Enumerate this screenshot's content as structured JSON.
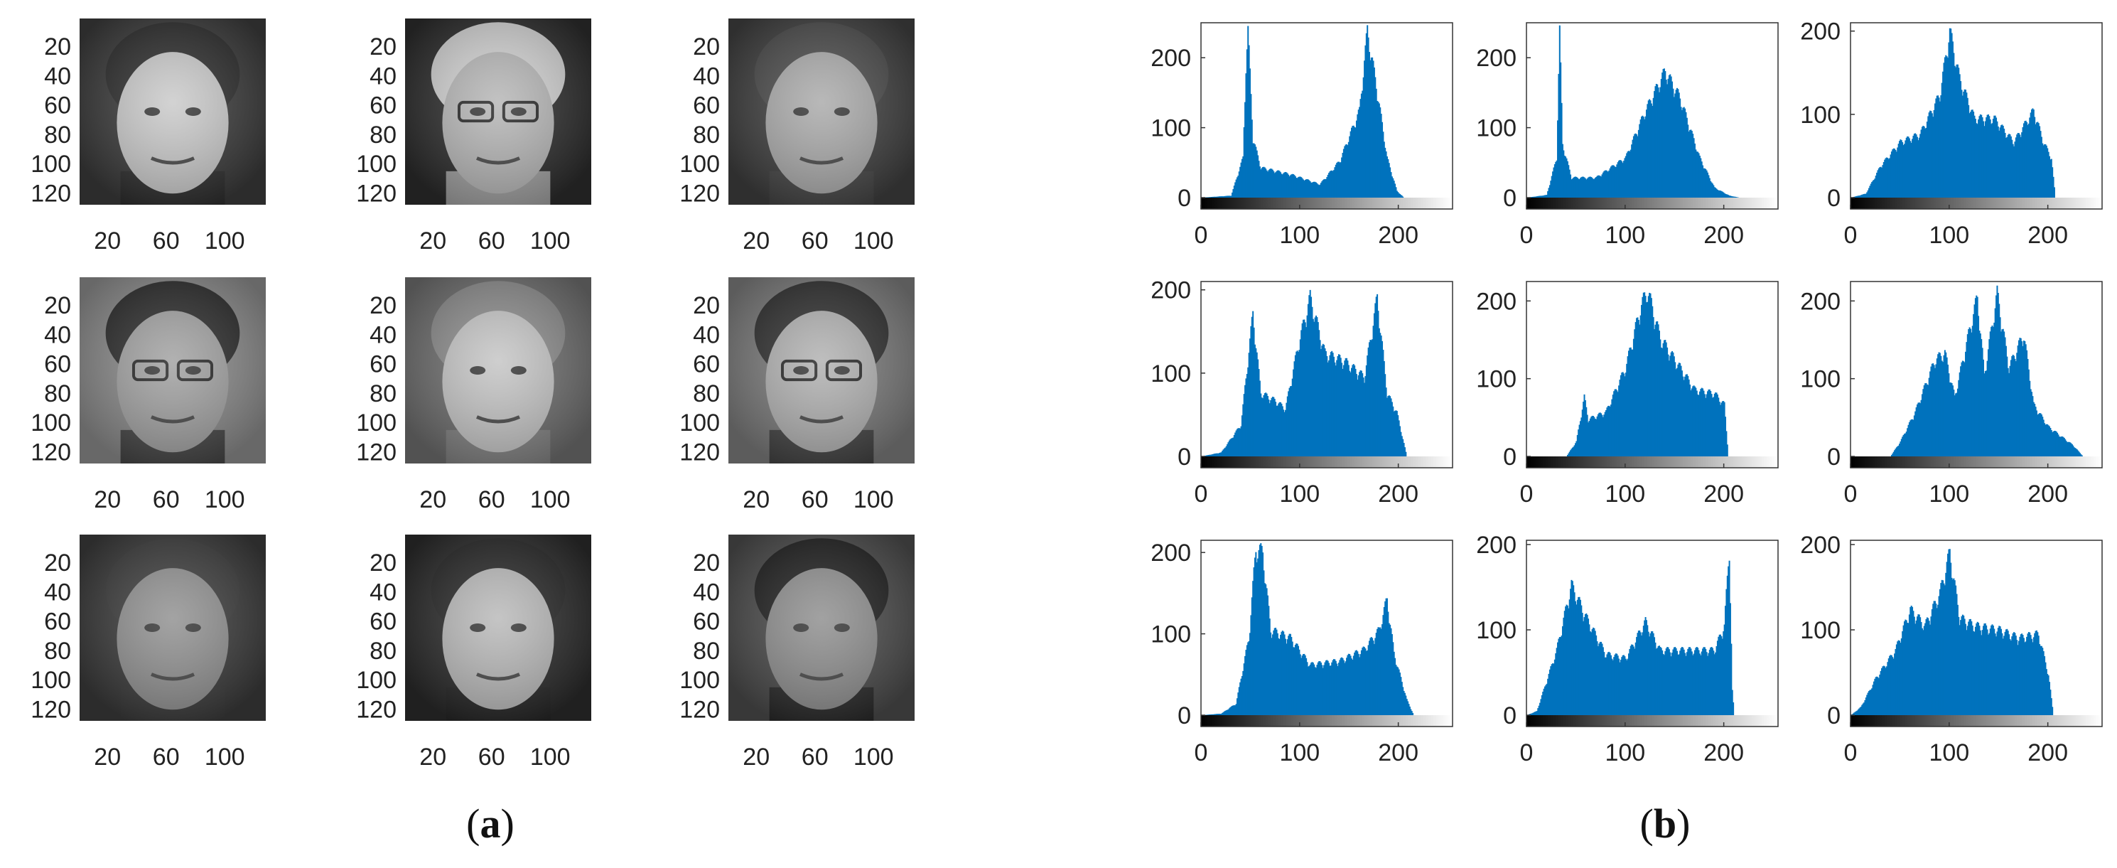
{
  "panels": {
    "a": {
      "label_open": "(",
      "label_letter": "a",
      "label_close": ")"
    },
    "b": {
      "label_open": "(",
      "label_letter": "b",
      "label_close": ")"
    }
  },
  "face_images": {
    "x_ticks": [
      20,
      60,
      100
    ],
    "y_ticks": [
      20,
      40,
      60,
      80,
      100,
      120
    ],
    "x_range": [
      1,
      128
    ],
    "y_range": [
      1,
      128
    ],
    "tiles": [
      {
        "background_tone": "#3a3a3a",
        "skin_tone": "#c9c9c9",
        "hair_tone": "#2b2b2b",
        "glasses": false
      },
      {
        "background_tone": "#2c2c2c",
        "skin_tone": "#b5b5b5",
        "hair_tone": "#d2d2d2",
        "glasses": true
      },
      {
        "background_tone": "#3f3f3f",
        "skin_tone": "#a9a9a9",
        "hair_tone": "#4a4a4a",
        "glasses": false
      },
      {
        "background_tone": "#8a8a8a",
        "skin_tone": "#a0a0a0",
        "hair_tone": "#2a2a2a",
        "glasses": true
      },
      {
        "background_tone": "#6e6e6e",
        "skin_tone": "#c4c4c4",
        "hair_tone": "#8c8c8c",
        "glasses": false
      },
      {
        "background_tone": "#7a7a7a",
        "skin_tone": "#b0b0b0",
        "hair_tone": "#2e2e2e",
        "glasses": true
      },
      {
        "background_tone": "#3a3a3a",
        "skin_tone": "#8f8f8f",
        "hair_tone": "#3c3c3c",
        "glasses": false
      },
      {
        "background_tone": "#2a2a2a",
        "skin_tone": "#b8b8b8",
        "hair_tone": "#262626",
        "glasses": false
      },
      {
        "background_tone": "#4b4b4b",
        "skin_tone": "#8d8d8d",
        "hair_tone": "#1e1e1e",
        "glasses": false
      }
    ]
  },
  "chart_data": {
    "type": "bar",
    "bar_color": "#0072BD",
    "x_ticks": [
      0,
      100,
      200
    ],
    "y_ticks": [
      0,
      100,
      200
    ],
    "xlim": [
      0,
      255
    ],
    "grid": false,
    "colorbar": "grayscale gradient 0 to 255 below each x-axis",
    "histograms": [
      {
        "ylim": [
          0,
          250
        ],
        "peaks": [
          [
            0,
            0
          ],
          [
            30,
            3
          ],
          [
            42,
            60
          ],
          [
            45,
            200
          ],
          [
            47,
            250
          ],
          [
            52,
            90
          ],
          [
            60,
            45
          ],
          [
            90,
            35
          ],
          [
            120,
            20
          ],
          [
            140,
            55
          ],
          [
            160,
            130
          ],
          [
            168,
            250
          ],
          [
            178,
            160
          ],
          [
            188,
            60
          ],
          [
            198,
            10
          ],
          [
            205,
            0
          ],
          [
            255,
            0
          ]
        ]
      },
      {
        "ylim": [
          0,
          250
        ],
        "peaks": [
          [
            0,
            0
          ],
          [
            20,
            4
          ],
          [
            30,
            60
          ],
          [
            33,
            250
          ],
          [
            36,
            80
          ],
          [
            45,
            30
          ],
          [
            70,
            30
          ],
          [
            100,
            60
          ],
          [
            120,
            130
          ],
          [
            140,
            190
          ],
          [
            155,
            150
          ],
          [
            175,
            60
          ],
          [
            190,
            15
          ],
          [
            205,
            3
          ],
          [
            215,
            0
          ],
          [
            255,
            0
          ]
        ]
      },
      {
        "ylim": [
          0,
          210
        ],
        "peaks": [
          [
            0,
            0
          ],
          [
            15,
            5
          ],
          [
            30,
            40
          ],
          [
            50,
            70
          ],
          [
            70,
            80
          ],
          [
            90,
            130
          ],
          [
            100,
            210
          ],
          [
            110,
            150
          ],
          [
            125,
            100
          ],
          [
            145,
            100
          ],
          [
            165,
            70
          ],
          [
            185,
            110
          ],
          [
            195,
            70
          ],
          [
            203,
            50
          ],
          [
            207,
            0
          ],
          [
            255,
            0
          ]
        ]
      },
      {
        "ylim": [
          0,
          210
        ],
        "peaks": [
          [
            0,
            0
          ],
          [
            20,
            5
          ],
          [
            40,
            40
          ],
          [
            52,
            180
          ],
          [
            60,
            80
          ],
          [
            75,
            70
          ],
          [
            85,
            60
          ],
          [
            98,
            140
          ],
          [
            110,
            200
          ],
          [
            125,
            130
          ],
          [
            145,
            120
          ],
          [
            165,
            100
          ],
          [
            178,
            200
          ],
          [
            188,
            80
          ],
          [
            198,
            55
          ],
          [
            208,
            0
          ],
          [
            255,
            0
          ]
        ]
      },
      {
        "ylim": [
          0,
          225
        ],
        "peaks": [
          [
            0,
            0
          ],
          [
            40,
            0
          ],
          [
            50,
            20
          ],
          [
            58,
            80
          ],
          [
            62,
            50
          ],
          [
            80,
            60
          ],
          [
            100,
            120
          ],
          [
            115,
            200
          ],
          [
            122,
            225
          ],
          [
            135,
            160
          ],
          [
            150,
            130
          ],
          [
            170,
            90
          ],
          [
            190,
            85
          ],
          [
            200,
            70
          ],
          [
            204,
            0
          ],
          [
            255,
            0
          ]
        ]
      },
      {
        "ylim": [
          0,
          225
        ],
        "peaks": [
          [
            0,
            0
          ],
          [
            40,
            0
          ],
          [
            50,
            20
          ],
          [
            65,
            60
          ],
          [
            85,
            130
          ],
          [
            95,
            140
          ],
          [
            105,
            80
          ],
          [
            120,
            170
          ],
          [
            128,
            215
          ],
          [
            135,
            110
          ],
          [
            148,
            220
          ],
          [
            160,
            120
          ],
          [
            175,
            165
          ],
          [
            185,
            70
          ],
          [
            200,
            40
          ],
          [
            225,
            15
          ],
          [
            235,
            0
          ],
          [
            255,
            0
          ]
        ]
      },
      {
        "ylim": [
          0,
          215
        ],
        "peaks": [
          [
            0,
            0
          ],
          [
            20,
            2
          ],
          [
            35,
            15
          ],
          [
            48,
            100
          ],
          [
            55,
            215
          ],
          [
            62,
            210
          ],
          [
            70,
            110
          ],
          [
            90,
            100
          ],
          [
            110,
            65
          ],
          [
            140,
            70
          ],
          [
            165,
            85
          ],
          [
            180,
            110
          ],
          [
            188,
            150
          ],
          [
            195,
            80
          ],
          [
            208,
            20
          ],
          [
            215,
            0
          ],
          [
            255,
            0
          ]
        ]
      },
      {
        "ylim": [
          0,
          205
        ],
        "peaks": [
          [
            0,
            0
          ],
          [
            10,
            5
          ],
          [
            30,
            80
          ],
          [
            45,
            160
          ],
          [
            60,
            120
          ],
          [
            80,
            75
          ],
          [
            100,
            70
          ],
          [
            120,
            115
          ],
          [
            135,
            80
          ],
          [
            160,
            80
          ],
          [
            190,
            80
          ],
          [
            200,
            110
          ],
          [
            205,
            205
          ],
          [
            208,
            30
          ],
          [
            210,
            0
          ],
          [
            255,
            0
          ]
        ]
      },
      {
        "ylim": [
          0,
          205
        ],
        "peaks": [
          [
            0,
            0
          ],
          [
            10,
            10
          ],
          [
            25,
            45
          ],
          [
            45,
            80
          ],
          [
            60,
            130
          ],
          [
            75,
            110
          ],
          [
            90,
            150
          ],
          [
            100,
            200
          ],
          [
            110,
            120
          ],
          [
            125,
            110
          ],
          [
            150,
            105
          ],
          [
            170,
            95
          ],
          [
            190,
            100
          ],
          [
            200,
            50
          ],
          [
            205,
            0
          ],
          [
            255,
            0
          ]
        ]
      }
    ]
  }
}
